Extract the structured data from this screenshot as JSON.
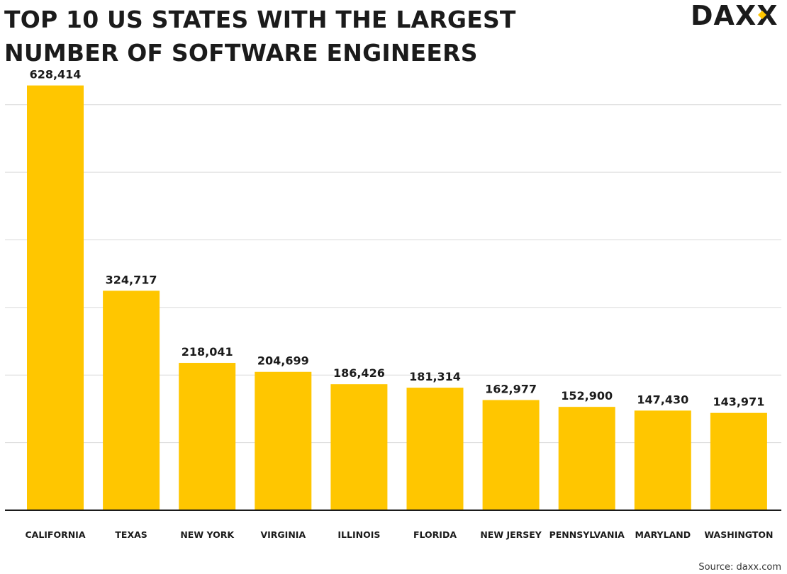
{
  "header": {
    "title_line1": "TOP 10 US STATES WITH THE LARGEST",
    "title_line2": "NUMBER OF SOFTWARE ENGINEERS"
  },
  "logo": {
    "text": "DAXX",
    "accent_color": "#FFC600"
  },
  "source": "Source: daxx.com",
  "colors": {
    "bar": "#FFC600",
    "grid": "#d9d9d9",
    "axis": "#1b1b1b"
  },
  "chart_data": {
    "type": "bar",
    "title": "TOP 10 US STATES WITH THE LARGEST NUMBER OF SOFTWARE ENGINEERS",
    "xlabel": "",
    "ylabel": "",
    "categories": [
      "CALIFORNIA",
      "TEXAS",
      "NEW YORK",
      "VIRGINIA",
      "ILLINOIS",
      "FLORIDA",
      "NEW JERSEY",
      "PENNSYLVANIA",
      "MARYLAND",
      "WASHINGTON"
    ],
    "values": [
      628414,
      324717,
      218041,
      204699,
      186426,
      181314,
      162977,
      152900,
      147430,
      143971
    ],
    "value_labels": [
      "628,414",
      "324,717",
      "218,041",
      "204,699",
      "186,426",
      "181,314",
      "162,977",
      "152,900",
      "147,430",
      "143,971"
    ],
    "ylim": [
      0,
      650000
    ],
    "grid_step": 100000,
    "grid": true,
    "legend": "none"
  }
}
